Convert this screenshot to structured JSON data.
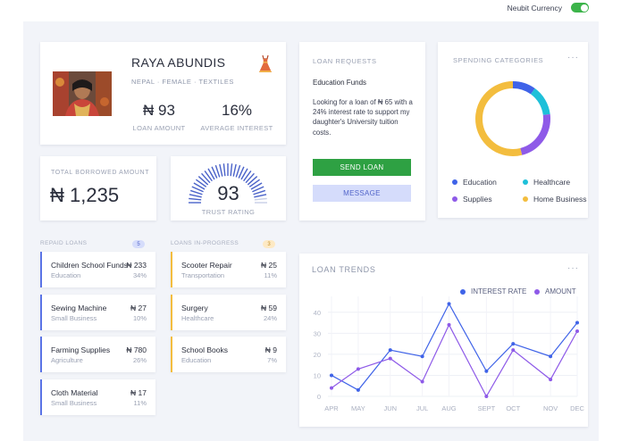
{
  "header": {
    "currency_label": "Neubit Currency",
    "currency_enabled": true
  },
  "profile": {
    "name": "RAYA ABUNDIS",
    "tags": "NEPAL · FEMALE · TEXTILES",
    "loan_amount_value": "₦ 93",
    "loan_amount_label": "LOAN AMOUNT",
    "interest_value": "16%",
    "interest_label": "AVERAGE INTEREST",
    "category_icon": "dress-icon"
  },
  "total_borrowed": {
    "label": "TOTAL BORROWED AMOUNT",
    "value": "₦ 1,235"
  },
  "trust": {
    "value": "93",
    "label": "TRUST RATING",
    "fraction": 0.93
  },
  "loan_requests": {
    "title": "LOAN REQUESTS",
    "subtitle": "Education Funds",
    "body": "Looking for a loan of ₦ 65 with a 24% interest rate to support my daughter's University tuition costs.",
    "send_label": "SEND LOAN",
    "message_label": "MESSAGE"
  },
  "spending": {
    "title": "SPENDING CATEGORIES",
    "menu_icon": "more-icon",
    "chart_data": {
      "type": "pie",
      "categories": [
        "Education",
        "Healthcare",
        "Supplies",
        "Home Business"
      ],
      "values": [
        10,
        13,
        23,
        54
      ],
      "colors": [
        "#3f63e8",
        "#1ec0d9",
        "#8e5ae8",
        "#f3bd3e"
      ]
    }
  },
  "repaid": {
    "title": "REPAID LOANS",
    "count": "5",
    "items": [
      {
        "title": "Children School Funds",
        "category": "Education",
        "amount": "₦ 233",
        "percent": "34%"
      },
      {
        "title": "Sewing Machine",
        "category": "Small Business",
        "amount": "₦ 27",
        "percent": "10%"
      },
      {
        "title": "Farming Supplies",
        "category": "Agriculture",
        "amount": "₦ 780",
        "percent": "26%"
      },
      {
        "title": "Cloth Material",
        "category": "Small Business",
        "amount": "₦ 17",
        "percent": "11%"
      }
    ]
  },
  "in_progress": {
    "title": "LOANS IN-PROGRESS",
    "count": "3",
    "items": [
      {
        "title": "Scooter Repair",
        "category": "Transportation",
        "amount": "₦ 25",
        "percent": "11%"
      },
      {
        "title": "Surgery",
        "category": "Healthcare",
        "amount": "₦ 59",
        "percent": "24%"
      },
      {
        "title": "School Books",
        "category": "Education",
        "amount": "₦ 9",
        "percent": "7%"
      }
    ]
  },
  "trends": {
    "title": "LOAN TRENDS",
    "menu_icon": "more-icon",
    "chart_data": {
      "type": "line",
      "categories": [
        "APR",
        "MAY",
        "JUN",
        "JUL",
        "AUG",
        "SEPT",
        "OCT",
        "NOV",
        "DEC"
      ],
      "x_positions": [
        0,
        1,
        2.2,
        3.4,
        4.4,
        5.8,
        6.8,
        8.2,
        9.2
      ],
      "ylim": [
        0,
        45
      ],
      "yticks": [
        0,
        10,
        20,
        30,
        40
      ],
      "series": [
        {
          "name": "INTEREST RATE",
          "color": "#3f63e8",
          "points": [
            [
              0,
              10
            ],
            [
              1,
              3
            ],
            [
              2.2,
              22
            ],
            [
              3.4,
              19
            ],
            [
              4.4,
              44
            ],
            [
              5.8,
              12
            ],
            [
              6.8,
              25
            ],
            [
              8.2,
              19
            ],
            [
              9.2,
              35
            ]
          ]
        },
        {
          "name": "AMOUNT",
          "color": "#8e5ae8",
          "points": [
            [
              0,
              4
            ],
            [
              1,
              13
            ],
            [
              2.2,
              18
            ],
            [
              3.4,
              7
            ],
            [
              4.4,
              34
            ],
            [
              5.8,
              0
            ],
            [
              6.8,
              22
            ],
            [
              8.2,
              8
            ],
            [
              9.2,
              31
            ]
          ]
        }
      ]
    }
  }
}
